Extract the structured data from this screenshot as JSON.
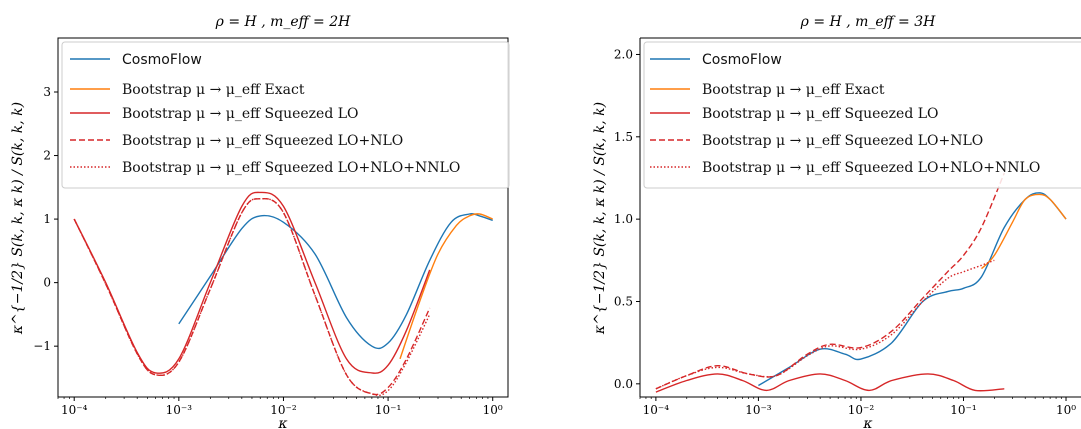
{
  "colors": {
    "cosmoflow": "#1f77b4",
    "exact": "#ff7f0e",
    "squeezed": "#d62728"
  },
  "chart_data": [
    {
      "type": "line",
      "title": "ρ = H ,  m_eff = 2H",
      "xlabel": "κ",
      "ylabel": "κ^{−1/2} S(k, k, κ k) / S(k, k, k)",
      "xscale": "log",
      "xlim": [
        7e-05,
        1.4
      ],
      "ylim": [
        -1.8,
        3.85
      ],
      "xticks": [
        0.0001,
        0.001,
        0.01,
        0.1,
        1
      ],
      "xtick_labels": [
        "10⁻⁴",
        "10⁻³",
        "10⁻²",
        "10⁻¹",
        "10⁰"
      ],
      "yticks": [
        -1,
        0,
        1,
        2,
        3
      ],
      "ytick_labels": [
        "−1",
        "0",
        "1",
        "2",
        "3"
      ],
      "legend": "upper left",
      "series": [
        {
          "name": "CosmoFlow",
          "style": "solid",
          "color": "#1f77b4",
          "x": [
            0.001,
            0.002,
            0.004,
            0.006,
            0.01,
            0.02,
            0.04,
            0.07,
            0.1,
            0.15,
            0.25,
            0.4,
            0.6,
            0.75,
            1.0
          ],
          "y": [
            -0.65,
            0.1,
            0.85,
            1.05,
            0.95,
            0.45,
            -0.55,
            -1.0,
            -0.95,
            -0.5,
            0.35,
            0.95,
            1.08,
            1.05,
            0.98
          ]
        },
        {
          "name": "Bootstrap μ → μ_eff Exact",
          "style": "solid",
          "color": "#ff7f0e",
          "x": [
            0.13,
            0.2,
            0.3,
            0.45,
            0.6,
            0.75,
            1.0
          ],
          "y": [
            -1.2,
            -0.3,
            0.45,
            0.9,
            1.05,
            1.08,
            1.0
          ]
        },
        {
          "name": "Bootstrap μ → μ_eff Squeezed LO",
          "style": "solid",
          "color": "#d62728",
          "x": [
            0.0001,
            0.0002,
            0.0004,
            0.0006,
            0.001,
            0.002,
            0.004,
            0.006,
            0.01,
            0.02,
            0.04,
            0.07,
            0.1,
            0.15,
            0.25
          ],
          "y": [
            1.0,
            0.0,
            -1.1,
            -1.42,
            -1.2,
            0.0,
            1.2,
            1.42,
            1.2,
            0.0,
            -1.2,
            -1.42,
            -1.3,
            -0.75,
            0.2
          ]
        },
        {
          "name": "Bootstrap μ → μ_eff Squeezed LO+NLO",
          "style": "dashed",
          "color": "#d62728",
          "x": [
            0.0001,
            0.0002,
            0.0004,
            0.0006,
            0.001,
            0.002,
            0.004,
            0.006,
            0.01,
            0.02,
            0.04,
            0.07,
            0.1,
            0.15,
            0.25
          ],
          "y": [
            1.0,
            -0.02,
            -1.12,
            -1.45,
            -1.25,
            -0.1,
            1.1,
            1.32,
            1.1,
            -0.2,
            -1.45,
            -1.75,
            -1.65,
            -1.2,
            -0.4
          ]
        },
        {
          "name": "Bootstrap μ → μ_eff Squeezed LO+NLO+NNLO",
          "style": "dotted",
          "color": "#d62728",
          "x": [
            0.0001,
            0.0002,
            0.0004,
            0.0006,
            0.001,
            0.002,
            0.004,
            0.006,
            0.01,
            0.02,
            0.04,
            0.07,
            0.1,
            0.15,
            0.25
          ],
          "y": [
            1.0,
            -0.02,
            -1.12,
            -1.45,
            -1.25,
            -0.1,
            1.1,
            1.32,
            1.1,
            -0.2,
            -1.45,
            -1.75,
            -1.7,
            -1.25,
            -0.5
          ]
        }
      ]
    },
    {
      "type": "line",
      "title": "ρ = H ,  m_eff = 3H",
      "xlabel": "κ",
      "ylabel": "κ^{−1/2} S(k, k, κ k) / S(k, k, k)",
      "xscale": "log",
      "xlim": [
        7e-05,
        1.4
      ],
      "ylim": [
        -0.08,
        2.1
      ],
      "xticks": [
        0.0001,
        0.001,
        0.01,
        0.1,
        1
      ],
      "xtick_labels": [
        "10⁻⁴",
        "10⁻³",
        "10⁻²",
        "10⁻¹",
        "10⁰"
      ],
      "yticks": [
        0.0,
        0.5,
        1.0,
        1.5,
        2.0
      ],
      "ytick_labels": [
        "0.0",
        "0.5",
        "1.0",
        "1.5",
        "2.0"
      ],
      "legend": "upper left",
      "series": [
        {
          "name": "CosmoFlow",
          "style": "solid",
          "color": "#1f77b4",
          "x": [
            0.001,
            0.002,
            0.004,
            0.007,
            0.01,
            0.02,
            0.04,
            0.07,
            0.1,
            0.15,
            0.25,
            0.4,
            0.55,
            0.7,
            1.0
          ],
          "y": [
            -0.01,
            0.1,
            0.21,
            0.18,
            0.15,
            0.25,
            0.5,
            0.56,
            0.58,
            0.65,
            0.95,
            1.12,
            1.16,
            1.12,
            1.0
          ]
        },
        {
          "name": "Bootstrap μ → μ_eff Exact",
          "style": "solid",
          "color": "#ff7f0e",
          "x": [
            0.15,
            0.2,
            0.3,
            0.4,
            0.55,
            0.7,
            1.0
          ],
          "y": [
            0.7,
            0.78,
            0.98,
            1.12,
            1.15,
            1.12,
            1.0
          ]
        },
        {
          "name": "Bootstrap μ → μ_eff Squeezed LO",
          "style": "solid",
          "color": "#d62728",
          "x": [
            0.0001,
            0.0002,
            0.0004,
            0.0007,
            0.0012,
            0.002,
            0.004,
            0.007,
            0.012,
            0.02,
            0.045,
            0.08,
            0.13,
            0.25
          ],
          "y": [
            -0.05,
            0.02,
            0.06,
            0.02,
            -0.04,
            0.02,
            0.06,
            0.02,
            -0.04,
            0.02,
            0.06,
            0.02,
            -0.04,
            -0.03
          ]
        },
        {
          "name": "Bootstrap μ → μ_eff Squeezed LO+NLO",
          "style": "dashed",
          "color": "#d62728",
          "x": [
            0.0001,
            0.0002,
            0.0004,
            0.0008,
            0.0015,
            0.003,
            0.005,
            0.01,
            0.02,
            0.04,
            0.07,
            0.1,
            0.15,
            0.25
          ],
          "y": [
            -0.03,
            0.05,
            0.11,
            0.06,
            0.05,
            0.18,
            0.24,
            0.22,
            0.32,
            0.52,
            0.68,
            0.78,
            0.95,
            1.28
          ]
        },
        {
          "name": "Bootstrap μ → μ_eff Squeezed LO+NLO+NNLO",
          "style": "dotted",
          "color": "#d62728",
          "x": [
            0.0001,
            0.0002,
            0.0004,
            0.0008,
            0.0015,
            0.003,
            0.005,
            0.01,
            0.02,
            0.04,
            0.07,
            0.1,
            0.15,
            0.2
          ],
          "y": [
            -0.03,
            0.05,
            0.1,
            0.06,
            0.05,
            0.17,
            0.23,
            0.21,
            0.3,
            0.5,
            0.64,
            0.68,
            0.72,
            0.75
          ]
        }
      ]
    }
  ]
}
